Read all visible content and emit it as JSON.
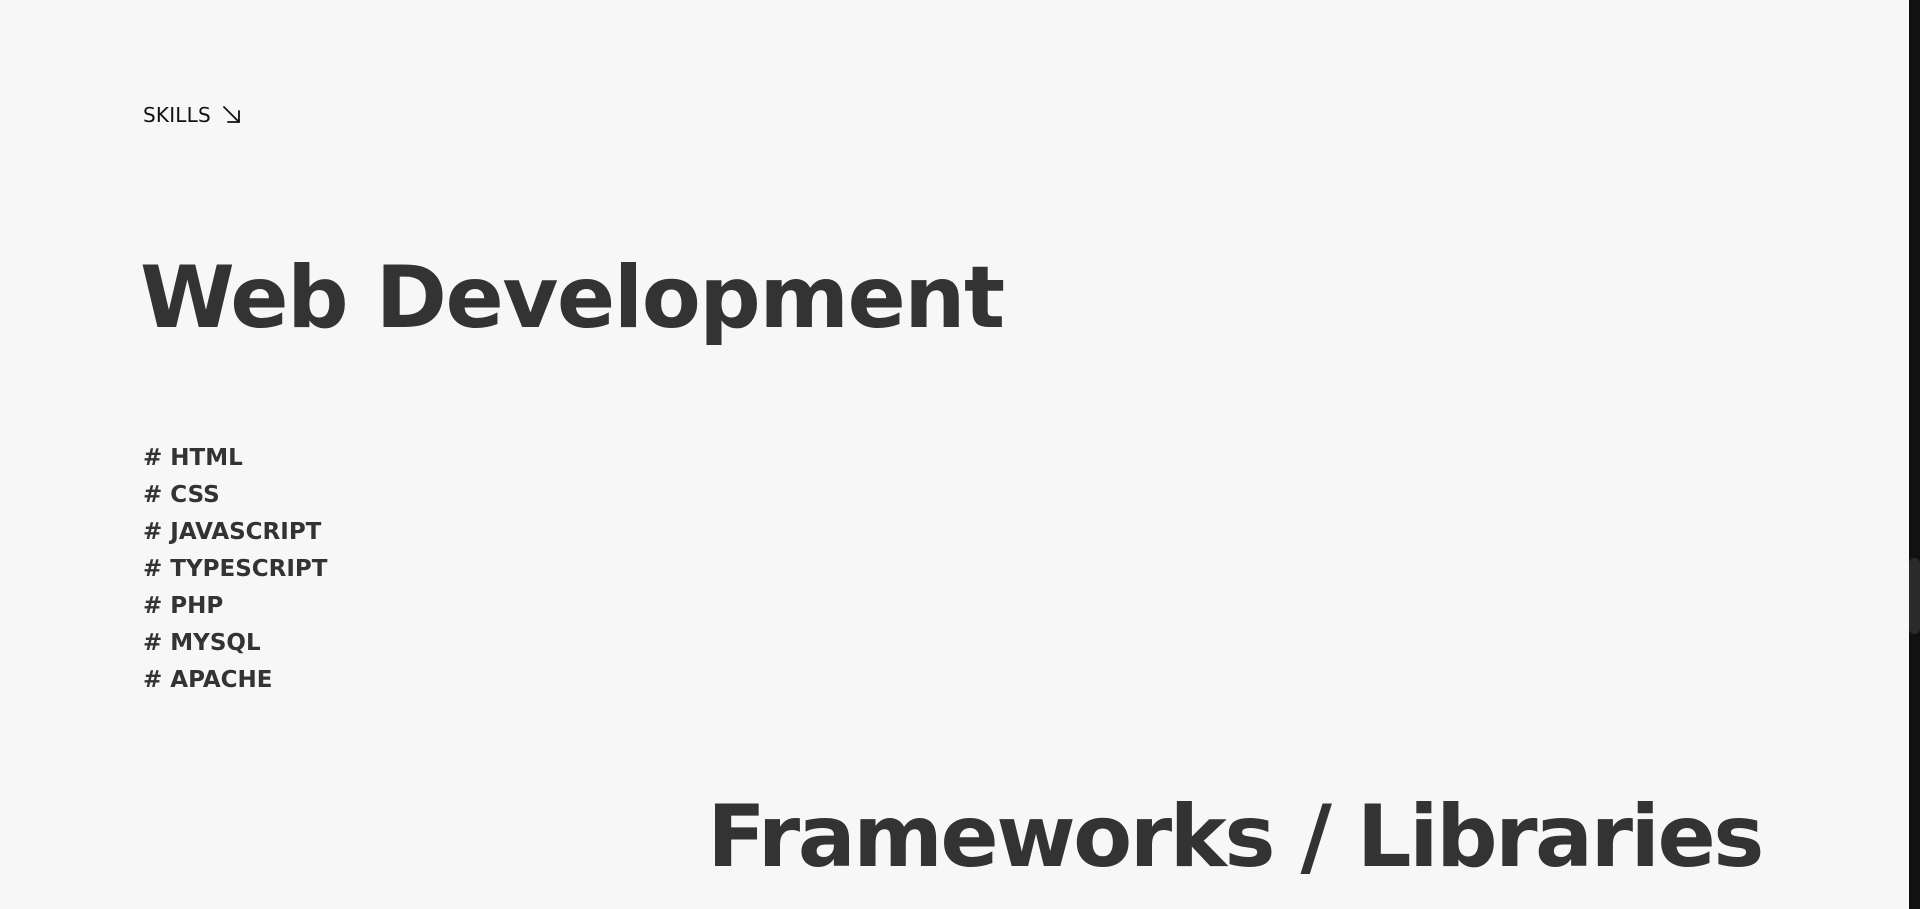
{
  "section": {
    "label": "SKILLS",
    "icon": "arrow-down-right-icon"
  },
  "web_development": {
    "title": "Web Development",
    "prefix": "#",
    "skills": [
      "HTML",
      "CSS",
      "JAVASCRIPT",
      "TYPESCRIPT",
      "PHP",
      "MYSQL",
      "APACHE"
    ]
  },
  "frameworks": {
    "title": "Frameworks / Libraries"
  },
  "colors": {
    "background": "#f7f7f7",
    "text": "#333333",
    "scrollbar_track": "#111111",
    "scrollbar_thumb": "#2a2a2a"
  }
}
